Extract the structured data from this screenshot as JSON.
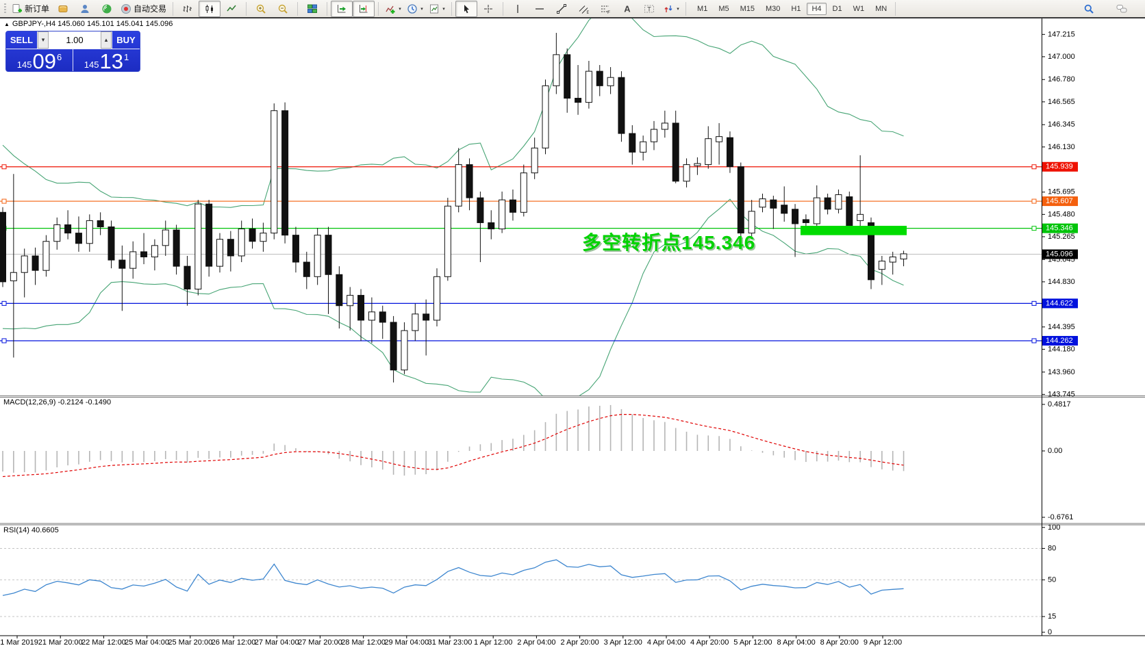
{
  "toolbar": {
    "dropdown_glyph": "▾",
    "buttons": [
      {
        "name": "new-order",
        "label": "新订单"
      },
      {
        "name": "new-chart"
      },
      {
        "name": "profile"
      },
      {
        "name": "signal"
      },
      {
        "name": "auto-trading",
        "label": "自动交易"
      },
      {
        "sep": true
      },
      {
        "name": "bar-chart"
      },
      {
        "name": "candle-chart",
        "active": true
      },
      {
        "name": "line-chart"
      },
      {
        "sep": true
      },
      {
        "name": "zoom-in"
      },
      {
        "name": "zoom-out"
      },
      {
        "sep": true
      },
      {
        "name": "tile-windows"
      },
      {
        "sep": true
      },
      {
        "name": "auto-scroll",
        "active": true
      },
      {
        "name": "chart-shift",
        "active": true
      },
      {
        "sep": true
      },
      {
        "name": "indicators",
        "dropdown": true
      },
      {
        "name": "periods",
        "dropdown": true
      },
      {
        "name": "templates",
        "dropdown": true
      },
      {
        "sep": true
      },
      {
        "name": "cursor",
        "active": true
      },
      {
        "name": "crosshair"
      },
      {
        "sep": true
      },
      {
        "name": "vertical-line"
      },
      {
        "name": "horizontal-line"
      },
      {
        "name": "trend-line"
      },
      {
        "name": "equidistant-channel"
      },
      {
        "name": "fibonacci"
      },
      {
        "name": "text"
      },
      {
        "name": "text-label"
      },
      {
        "name": "arrows",
        "dropdown": true
      },
      {
        "sep": true
      }
    ],
    "timeframes": {
      "items": [
        "M1",
        "M5",
        "M15",
        "M30",
        "H1",
        "H4",
        "D1",
        "W1",
        "MN"
      ],
      "active": "H4"
    },
    "right_icons": [
      {
        "name": "search"
      },
      {
        "name": "chat"
      }
    ]
  },
  "chart": {
    "marker_glyph": "▲",
    "symbol_label": "GBPJPY-,H4  145.060 145.101 145.041 145.096",
    "one_click": {
      "sell_label": "SELL",
      "buy_label": "BUY",
      "volume": "1.00",
      "volume_down_glyph": "▾",
      "volume_up_glyph": "▴",
      "sell_price_prefix": "145",
      "sell_price_main": "09",
      "sell_price_sup": "6",
      "buy_price_prefix": "145",
      "buy_price_main": "13",
      "buy_price_sup": "1"
    },
    "annotation": {
      "text": "多空转折点145.346",
      "color": "#00D300"
    },
    "price_axis_ticks": [
      "147.215",
      "147.000",
      "146.780",
      "146.565",
      "146.345",
      "146.130",
      "145.915",
      "145.695",
      "145.480",
      "145.265",
      "145.045",
      "144.830",
      "144.615",
      "144.395",
      "144.180",
      "143.960",
      "143.745"
    ],
    "levels": [
      {
        "price": 145.939,
        "label": "145.939",
        "color": "#EE1100",
        "kind": "resistance-line"
      },
      {
        "price": 145.607,
        "label": "145.607",
        "color": "#F4600E",
        "kind": "resistance-line"
      },
      {
        "price": 145.346,
        "label": "145.346",
        "color": "#00C40A",
        "kind": "pivot-line"
      },
      {
        "price": 144.622,
        "label": "144.622",
        "color": "#0011DD",
        "kind": "support-line"
      },
      {
        "price": 144.262,
        "label": "144.262",
        "color": "#0011DD",
        "kind": "support-line"
      }
    ],
    "bid": {
      "price": 145.096,
      "label": "145.096",
      "line_color": "#BDBDBD",
      "badge_color": "#000000"
    },
    "highlight": {
      "price_top": 145.37,
      "price_bottom": 145.28,
      "color": "#00DC00"
    },
    "time_axis": [
      "21 Mar 2019",
      "21 Mar 20:00",
      "22 Mar 12:00",
      "25 Mar 04:00",
      "25 Mar 20:00",
      "26 Mar 12:00",
      "27 Mar 04:00",
      "27 Mar 20:00",
      "28 Mar 12:00",
      "29 Mar 04:00",
      "31 Mar 23:00",
      "1 Apr 12:00",
      "2 Apr 04:00",
      "2 Apr 20:00",
      "3 Apr 12:00",
      "4 Apr 04:00",
      "4 Apr 20:00",
      "5 Apr 12:00",
      "8 Apr 04:00",
      "8 Apr 20:00",
      "9 Apr 12:00"
    ]
  },
  "indicators": {
    "macd": {
      "label": "MACD(12,26,9) -0.2124 -0.1490",
      "axis": [
        "0.4817",
        "0.00",
        "-0.6761"
      ],
      "histogram_color": "#B5B5B5",
      "signal_color": "#E00000"
    },
    "rsi": {
      "label": "RSI(14) 40.6605",
      "axis": [
        "100",
        "80",
        "50",
        "15",
        "0"
      ],
      "levels": [
        80,
        50,
        15
      ],
      "line_color": "#3D86CF"
    }
  },
  "chart_data": {
    "type": "candlestick",
    "symbol": "GBPJPY-",
    "timeframe": "H4",
    "ohlc_current": {
      "open": 145.06,
      "high": 145.101,
      "low": 145.041,
      "close": 145.096
    },
    "y_range": [
      143.745,
      147.215
    ],
    "x_range": [
      "21 Mar 2019",
      "9 Apr 2019 20:00"
    ],
    "overlays": {
      "bollinger": {
        "period": 20,
        "deviation": 2,
        "color": "#46A474"
      }
    },
    "key_levels": [
      145.939,
      145.607,
      145.346,
      145.096,
      144.622,
      144.262
    ],
    "prehistory_closes": [
      146.6,
      146.52,
      146.56,
      146.4,
      146.3,
      146.36,
      146.2,
      146.1,
      146.16,
      146.0,
      145.9,
      145.96,
      145.8,
      145.7,
      145.76,
      145.6,
      145.3,
      144.9,
      144.5,
      144.3,
      144.6,
      144.92,
      145.2,
      145.4,
      145.3,
      145.46,
      145.34,
      145.5,
      145.42,
      145.48
    ],
    "candles": [
      [
        145.5,
        145.55,
        144.78,
        144.83
      ],
      [
        144.84,
        145.87,
        144.1,
        144.92
      ],
      [
        144.92,
        145.15,
        144.68,
        145.08
      ],
      [
        145.08,
        145.16,
        144.8,
        144.94
      ],
      [
        144.94,
        145.28,
        144.88,
        145.22
      ],
      [
        145.22,
        145.45,
        145.14,
        145.38
      ],
      [
        145.38,
        145.52,
        145.24,
        145.3
      ],
      [
        145.3,
        145.46,
        145.12,
        145.2
      ],
      [
        145.2,
        145.48,
        145.12,
        145.42
      ],
      [
        145.42,
        145.5,
        145.28,
        145.36
      ],
      [
        145.36,
        145.42,
        144.96,
        145.04
      ],
      [
        145.04,
        145.18,
        144.55,
        144.96
      ],
      [
        144.96,
        145.22,
        144.86,
        145.12
      ],
      [
        145.12,
        145.3,
        145.0,
        145.07
      ],
      [
        145.07,
        145.24,
        144.94,
        145.18
      ],
      [
        145.18,
        145.42,
        145.08,
        145.33
      ],
      [
        145.33,
        145.38,
        144.9,
        144.98
      ],
      [
        144.98,
        145.08,
        144.6,
        144.76
      ],
      [
        144.76,
        145.62,
        144.7,
        145.58
      ],
      [
        145.58,
        145.62,
        144.88,
        144.98
      ],
      [
        144.98,
        145.3,
        144.92,
        145.24
      ],
      [
        145.24,
        145.32,
        144.93,
        145.08
      ],
      [
        145.08,
        145.42,
        145.02,
        145.34
      ],
      [
        145.34,
        145.44,
        145.15,
        145.22
      ],
      [
        145.22,
        145.4,
        145.12,
        145.3
      ],
      [
        145.3,
        146.55,
        145.24,
        146.48
      ],
      [
        146.48,
        146.56,
        145.2,
        145.28
      ],
      [
        145.28,
        145.36,
        144.92,
        145.02
      ],
      [
        145.02,
        145.12,
        144.76,
        144.88
      ],
      [
        144.88,
        145.35,
        144.8,
        145.28
      ],
      [
        145.28,
        145.36,
        144.52,
        144.9
      ],
      [
        144.9,
        144.98,
        144.38,
        144.6
      ],
      [
        144.6,
        144.78,
        144.36,
        144.7
      ],
      [
        144.7,
        144.76,
        144.26,
        144.46
      ],
      [
        144.46,
        144.68,
        144.24,
        144.54
      ],
      [
        144.54,
        144.6,
        144.28,
        144.44
      ],
      [
        144.44,
        144.5,
        143.86,
        143.98
      ],
      [
        143.98,
        144.44,
        143.94,
        144.36
      ],
      [
        144.36,
        144.62,
        144.26,
        144.52
      ],
      [
        144.52,
        144.66,
        144.12,
        144.46
      ],
      [
        144.46,
        144.96,
        144.4,
        144.88
      ],
      [
        144.88,
        145.64,
        144.84,
        145.56
      ],
      [
        145.56,
        146.12,
        145.5,
        145.96
      ],
      [
        145.96,
        146.02,
        145.52,
        145.64
      ],
      [
        145.64,
        145.7,
        145.02,
        145.4
      ],
      [
        145.4,
        145.52,
        145.24,
        145.34
      ],
      [
        145.34,
        145.7,
        145.3,
        145.62
      ],
      [
        145.62,
        145.72,
        145.42,
        145.5
      ],
      [
        145.5,
        145.96,
        145.46,
        145.88
      ],
      [
        145.88,
        146.22,
        145.82,
        146.12
      ],
      [
        146.12,
        146.78,
        146.06,
        146.72
      ],
      [
        146.72,
        147.23,
        146.64,
        147.02
      ],
      [
        147.02,
        147.08,
        146.46,
        146.6
      ],
      [
        146.6,
        146.92,
        146.44,
        146.56
      ],
      [
        146.56,
        146.96,
        146.5,
        146.86
      ],
      [
        146.86,
        146.92,
        146.62,
        146.72
      ],
      [
        146.72,
        146.9,
        146.64,
        146.8
      ],
      [
        146.8,
        146.86,
        146.18,
        146.26
      ],
      [
        146.26,
        146.34,
        145.96,
        146.08
      ],
      [
        146.08,
        146.24,
        146.0,
        146.18
      ],
      [
        146.18,
        146.38,
        146.1,
        146.3
      ],
      [
        146.3,
        146.48,
        146.22,
        146.36
      ],
      [
        146.36,
        146.48,
        145.78,
        145.8
      ],
      [
        145.8,
        146.02,
        145.74,
        145.96
      ],
      [
        145.95,
        146.03,
        145.86,
        145.97
      ],
      [
        145.96,
        146.33,
        145.92,
        146.21
      ],
      [
        146.18,
        146.36,
        145.96,
        146.23
      ],
      [
        146.22,
        146.28,
        145.88,
        145.94
      ],
      [
        145.94,
        145.98,
        145.24,
        145.3
      ],
      [
        145.3,
        145.62,
        145.27,
        145.51
      ],
      [
        145.55,
        145.68,
        145.5,
        145.63
      ],
      [
        145.62,
        145.66,
        145.34,
        145.54
      ],
      [
        145.57,
        145.75,
        145.41,
        145.49
      ],
      [
        145.53,
        145.58,
        145.07,
        145.39
      ],
      [
        145.43,
        145.48,
        145.33,
        145.4
      ],
      [
        145.39,
        145.76,
        145.36,
        145.64
      ],
      [
        145.64,
        145.68,
        145.48,
        145.53
      ],
      [
        145.53,
        145.72,
        145.49,
        145.67
      ],
      [
        145.65,
        145.7,
        145.33,
        145.36
      ],
      [
        145.42,
        146.05,
        145.35,
        145.48
      ],
      [
        145.4,
        145.45,
        144.76,
        144.85
      ],
      [
        144.95,
        145.08,
        144.8,
        145.03
      ],
      [
        145.02,
        145.12,
        144.9,
        145.07
      ],
      [
        145.05,
        145.13,
        144.98,
        145.1
      ]
    ]
  }
}
